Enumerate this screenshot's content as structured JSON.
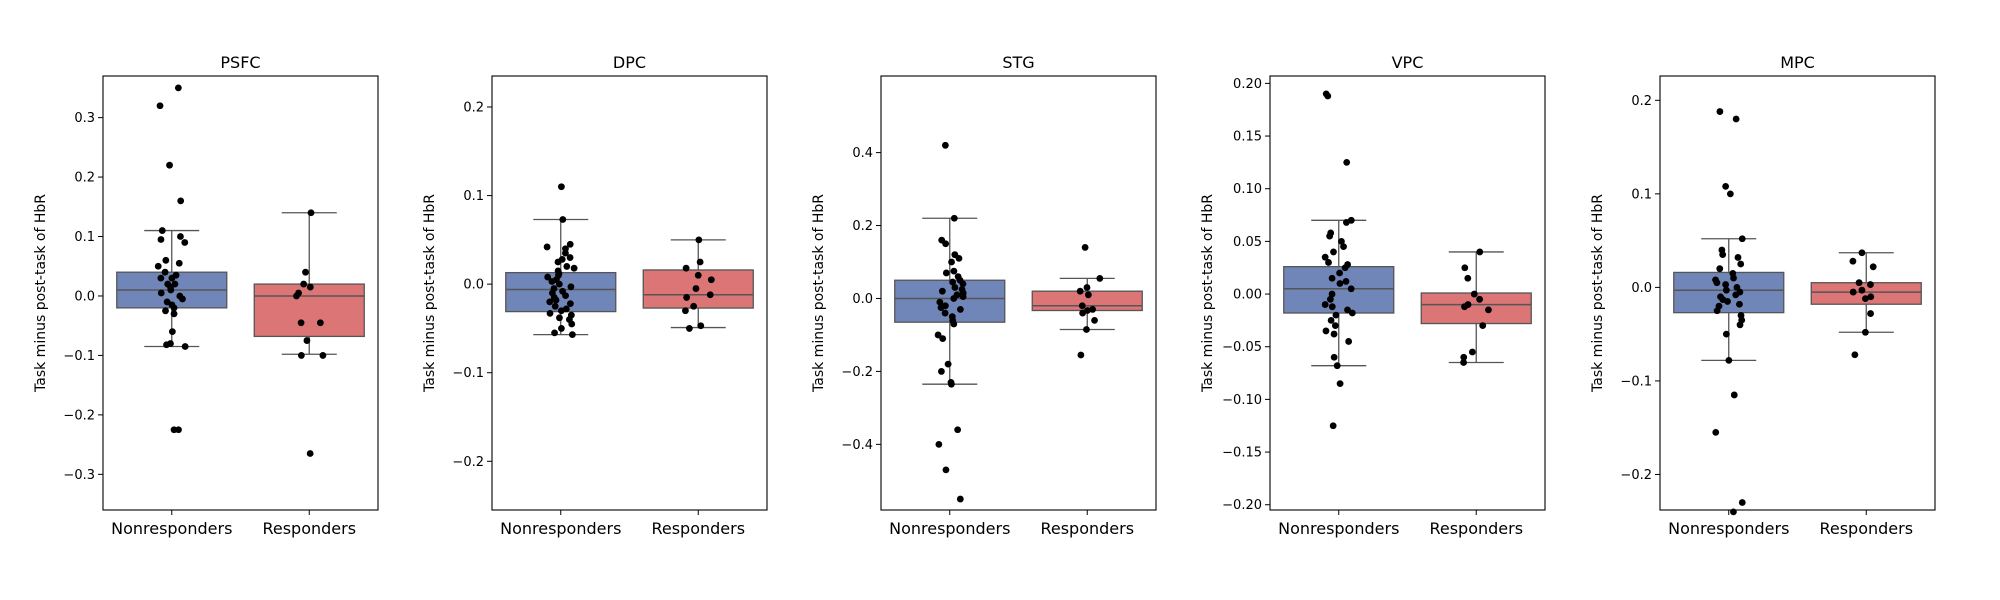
{
  "figure": {
    "colors": {
      "nonresponders": "#7186b8",
      "responders": "#dc7576",
      "points": "#000000",
      "edge": "#555555"
    }
  },
  "chart_data": [
    {
      "type": "box",
      "title": "PSFC",
      "ylabel": "Task minus post-task of HbR",
      "categories": [
        "Nonresponders",
        "Responders"
      ],
      "ylim": [
        -0.36,
        0.37
      ],
      "yticks": [
        -0.3,
        -0.2,
        -0.1,
        0.0,
        0.1,
        0.2,
        0.3
      ],
      "tick_labels": [
        "−0.3",
        "−0.2",
        "−0.1",
        "0.0",
        "0.1",
        "0.2",
        "0.3"
      ],
      "boxes": [
        {
          "q1": -0.02,
          "median": 0.01,
          "q3": 0.04,
          "whisker_low": -0.085,
          "whisker_high": 0.11
        },
        {
          "q1": -0.068,
          "median": 0.0,
          "q3": 0.02,
          "whisker_low": -0.098,
          "whisker_high": 0.14
        }
      ],
      "points": [
        [
          0.35,
          0.32,
          0.22,
          0.16,
          0.11,
          0.1,
          0.095,
          0.09,
          0.06,
          0.055,
          0.05,
          0.04,
          0.035,
          0.03,
          0.03,
          0.02,
          0.02,
          0.015,
          0.01,
          0.005,
          0.0,
          -0.005,
          -0.01,
          -0.015,
          -0.02,
          -0.025,
          -0.03,
          -0.06,
          -0.08,
          -0.082,
          -0.085,
          -0.225,
          -0.225
        ],
        [
          0.14,
          0.04,
          0.02,
          0.015,
          0.005,
          0.0,
          -0.045,
          -0.045,
          -0.075,
          -0.1,
          -0.1,
          -0.265
        ]
      ]
    },
    {
      "type": "box",
      "title": "DPC",
      "ylabel": "Task minus post-task of HbR",
      "categories": [
        "Nonresponders",
        "Responders"
      ],
      "ylim": [
        -0.255,
        0.235
      ],
      "yticks": [
        -0.2,
        -0.1,
        0.0,
        0.1,
        0.2
      ],
      "tick_labels": [
        "−0.2",
        "−0.1",
        "0.0",
        "0.1",
        "0.2"
      ],
      "boxes": [
        {
          "q1": -0.031,
          "median": -0.006,
          "q3": 0.013,
          "whisker_low": -0.057,
          "whisker_high": 0.073
        },
        {
          "q1": -0.027,
          "median": -0.012,
          "q3": 0.016,
          "whisker_low": -0.049,
          "whisker_high": 0.05
        }
      ],
      "points": [
        [
          0.11,
          0.073,
          0.045,
          0.042,
          0.04,
          0.035,
          0.03,
          0.028,
          0.025,
          0.02,
          0.018,
          0.015,
          0.012,
          0.01,
          0.008,
          0.005,
          0.003,
          0.0,
          -0.003,
          -0.005,
          -0.008,
          -0.01,
          -0.013,
          -0.015,
          -0.018,
          -0.02,
          -0.022,
          -0.025,
          -0.028,
          -0.03,
          -0.033,
          -0.035,
          -0.038,
          -0.04,
          -0.045,
          -0.05,
          -0.055,
          -0.057
        ],
        [
          0.05,
          0.025,
          0.018,
          0.01,
          0.005,
          -0.005,
          -0.012,
          -0.015,
          -0.025,
          -0.03,
          -0.047,
          -0.05
        ]
      ]
    },
    {
      "type": "box",
      "title": "STG",
      "ylabel": "Task minus post-task of HbR",
      "categories": [
        "Nonresponders",
        "Responders"
      ],
      "ylim": [
        -0.58,
        0.61
      ],
      "yticks": [
        -0.4,
        -0.2,
        0.0,
        0.2,
        0.4
      ],
      "tick_labels": [
        "−0.4",
        "−0.2",
        "0.0",
        "0.2",
        "0.4"
      ],
      "boxes": [
        {
          "q1": -0.065,
          "median": 0.0,
          "q3": 0.05,
          "whisker_low": -0.235,
          "whisker_high": 0.22
        },
        {
          "q1": -0.033,
          "median": -0.02,
          "q3": 0.02,
          "whisker_low": -0.085,
          "whisker_high": 0.055
        }
      ],
      "points": [
        [
          0.42,
          0.22,
          0.16,
          0.15,
          0.12,
          0.11,
          0.1,
          0.075,
          0.07,
          0.06,
          0.05,
          0.045,
          0.04,
          0.03,
          0.025,
          0.02,
          0.015,
          0.01,
          0.005,
          0.0,
          -0.01,
          -0.02,
          -0.025,
          -0.03,
          -0.04,
          -0.05,
          -0.06,
          -0.07,
          -0.1,
          -0.11,
          -0.18,
          -0.2,
          -0.23,
          -0.235,
          -0.36,
          -0.4,
          -0.47,
          -0.55
        ],
        [
          0.14,
          0.055,
          0.03,
          0.02,
          0.01,
          -0.02,
          -0.03,
          -0.033,
          -0.04,
          -0.06,
          -0.085,
          -0.155
        ]
      ]
    },
    {
      "type": "box",
      "title": "VPC",
      "ylabel": "Task minus post-task of HbR",
      "categories": [
        "Nonresponders",
        "Responders"
      ],
      "ylim": [
        -0.205,
        0.207
      ],
      "yticks": [
        -0.2,
        -0.15,
        -0.1,
        -0.05,
        0.0,
        0.05,
        0.1,
        0.15,
        0.2
      ],
      "tick_labels": [
        "−0.20",
        "−0.15",
        "−0.10",
        "−0.05",
        "0.00",
        "0.05",
        "0.10",
        "0.15",
        "0.20"
      ],
      "boxes": [
        {
          "q1": -0.018,
          "median": 0.005,
          "q3": 0.026,
          "whisker_low": -0.068,
          "whisker_high": 0.07
        },
        {
          "q1": -0.028,
          "median": -0.01,
          "q3": 0.001,
          "whisker_low": -0.065,
          "whisker_high": 0.04
        }
      ],
      "points": [
        [
          0.19,
          0.188,
          0.125,
          0.07,
          0.068,
          0.058,
          0.055,
          0.05,
          0.045,
          0.04,
          0.035,
          0.03,
          0.028,
          0.025,
          0.02,
          0.015,
          0.012,
          0.01,
          0.005,
          0.0,
          -0.005,
          -0.01,
          -0.012,
          -0.015,
          -0.018,
          -0.02,
          -0.025,
          -0.03,
          -0.035,
          -0.038,
          -0.045,
          -0.06,
          -0.068,
          -0.085,
          -0.125
        ],
        [
          0.04,
          0.025,
          0.015,
          0.0,
          -0.005,
          -0.01,
          -0.012,
          -0.015,
          -0.03,
          -0.055,
          -0.06,
          -0.065
        ]
      ]
    },
    {
      "type": "box",
      "title": "MPC",
      "ylabel": "Task minus post-task of HbR",
      "categories": [
        "Nonresponders",
        "Responders"
      ],
      "ylim": [
        -0.238,
        0.226
      ],
      "yticks": [
        -0.2,
        -0.1,
        0.0,
        0.1,
        0.2
      ],
      "tick_labels": [
        "−0.2",
        "−0.1",
        "0.0",
        "0.1",
        "0.2"
      ],
      "boxes": [
        {
          "q1": -0.027,
          "median": -0.003,
          "q3": 0.016,
          "whisker_low": -0.078,
          "whisker_high": 0.052
        },
        {
          "q1": -0.018,
          "median": -0.005,
          "q3": 0.005,
          "whisker_low": -0.048,
          "whisker_high": 0.037
        }
      ],
      "points": [
        [
          0.188,
          0.18,
          0.108,
          0.1,
          0.052,
          0.04,
          0.035,
          0.032,
          0.025,
          0.02,
          0.015,
          0.01,
          0.008,
          0.005,
          0.003,
          0.0,
          -0.003,
          -0.005,
          -0.008,
          -0.01,
          -0.013,
          -0.015,
          -0.018,
          -0.02,
          -0.025,
          -0.03,
          -0.035,
          -0.04,
          -0.05,
          -0.078,
          -0.115,
          -0.155,
          -0.23,
          -0.24
        ],
        [
          0.037,
          0.028,
          0.022,
          0.005,
          0.003,
          -0.003,
          -0.005,
          -0.01,
          -0.012,
          -0.028,
          -0.048,
          -0.072
        ]
      ]
    }
  ]
}
